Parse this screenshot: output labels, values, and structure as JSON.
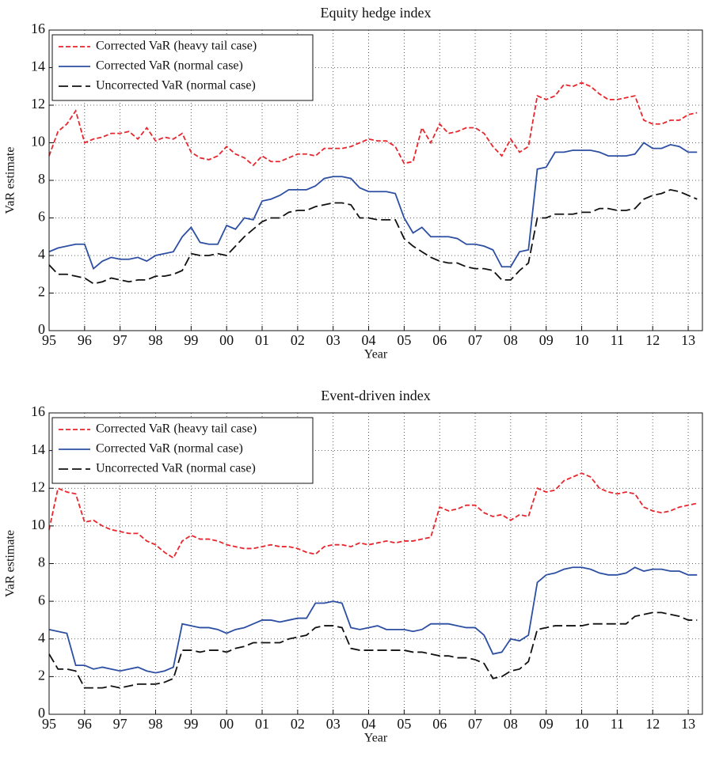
{
  "chart_data": [
    {
      "type": "line",
      "title": "Equity hedge index",
      "x_label": "Year",
      "y_label": "VaR estimate",
      "x": [
        1995,
        1995.25,
        1995.5,
        1995.75,
        1996,
        1996.25,
        1996.5,
        1996.75,
        1997,
        1997.25,
        1997.5,
        1997.75,
        1998,
        1998.25,
        1998.5,
        1998.75,
        1999,
        1999.25,
        1999.5,
        1999.75,
        2000,
        2000.25,
        2000.5,
        2000.75,
        2001,
        2001.25,
        2001.5,
        2001.75,
        2002,
        2002.25,
        2002.5,
        2002.75,
        2003,
        2003.25,
        2003.5,
        2003.75,
        2004,
        2004.25,
        2004.5,
        2004.75,
        2005,
        2005.25,
        2005.5,
        2005.75,
        2006,
        2006.25,
        2006.5,
        2006.75,
        2007,
        2007.25,
        2007.5,
        2007.75,
        2008,
        2008.25,
        2008.5,
        2008.75,
        2009,
        2009.25,
        2009.5,
        2009.75,
        2010,
        2010.25,
        2010.5,
        2010.75,
        2011,
        2011.25,
        2011.5,
        2011.75,
        2012,
        2012.25,
        2012.5,
        2012.75,
        2013,
        2013.25
      ],
      "series": [
        {
          "name": "Corrected VaR (heavy tail case)",
          "color": "#e8262d",
          "style": "dashed",
          "values": [
            9.3,
            10.6,
            11.0,
            11.7,
            10.0,
            10.2,
            10.3,
            10.5,
            10.5,
            10.6,
            10.2,
            10.8,
            10.1,
            10.3,
            10.2,
            10.5,
            9.5,
            9.2,
            9.1,
            9.3,
            9.8,
            9.4,
            9.2,
            8.8,
            9.3,
            9.0,
            9.0,
            9.2,
            9.4,
            9.4,
            9.3,
            9.7,
            9.7,
            9.7,
            9.8,
            10.0,
            10.2,
            10.1,
            10.1,
            9.8,
            8.9,
            9.0,
            10.8,
            10.0,
            11.0,
            10.5,
            10.6,
            10.8,
            10.8,
            10.5,
            9.8,
            9.3,
            10.2,
            9.5,
            9.8,
            12.5,
            12.3,
            12.5,
            13.1,
            13.0,
            13.2,
            13.0,
            12.6,
            12.3,
            12.3,
            12.4,
            12.5,
            11.2,
            11.0,
            11.0,
            11.2,
            11.2,
            11.5,
            11.6
          ]
        },
        {
          "name": "Corrected VaR (normal case)",
          "color": "#2c4fa3",
          "style": "solid",
          "values": [
            4.2,
            4.4,
            4.5,
            4.6,
            4.6,
            3.3,
            3.7,
            3.9,
            3.8,
            3.8,
            3.9,
            3.7,
            4.0,
            4.1,
            4.2,
            5.0,
            5.5,
            4.7,
            4.6,
            4.6,
            5.6,
            5.4,
            6.0,
            5.9,
            6.9,
            7.0,
            7.2,
            7.5,
            7.5,
            7.5,
            7.7,
            8.1,
            8.2,
            8.2,
            8.1,
            7.6,
            7.4,
            7.4,
            7.4,
            7.3,
            6.0,
            5.2,
            5.5,
            5.0,
            5.0,
            5.0,
            4.9,
            4.6,
            4.6,
            4.5,
            4.3,
            3.4,
            3.4,
            4.2,
            4.3,
            8.6,
            8.7,
            9.5,
            9.5,
            9.6,
            9.6,
            9.6,
            9.5,
            9.3,
            9.3,
            9.3,
            9.4,
            10.0,
            9.7,
            9.7,
            9.9,
            9.8,
            9.5,
            9.5
          ]
        },
        {
          "name": "Uncorrected VaR (normal case)",
          "color": "#111111",
          "style": "long-dash",
          "values": [
            3.5,
            3.0,
            3.0,
            2.9,
            2.8,
            2.5,
            2.6,
            2.8,
            2.7,
            2.6,
            2.7,
            2.7,
            2.9,
            2.9,
            3.0,
            3.2,
            4.1,
            4.0,
            4.0,
            4.1,
            4.0,
            4.5,
            5.0,
            5.4,
            5.8,
            6.0,
            6.0,
            6.3,
            6.4,
            6.4,
            6.6,
            6.7,
            6.8,
            6.8,
            6.7,
            6.0,
            6.0,
            5.9,
            5.9,
            5.9,
            4.9,
            4.5,
            4.2,
            3.9,
            3.7,
            3.6,
            3.6,
            3.4,
            3.3,
            3.3,
            3.2,
            2.7,
            2.7,
            3.2,
            3.6,
            6.0,
            6.0,
            6.2,
            6.2,
            6.2,
            6.3,
            6.3,
            6.5,
            6.5,
            6.4,
            6.4,
            6.5,
            7.0,
            7.2,
            7.3,
            7.5,
            7.4,
            7.2,
            7.0
          ]
        }
      ],
      "xlim": [
        1995,
        2013.4
      ],
      "xticks": [
        {
          "value": 1995,
          "label": "95"
        },
        {
          "value": 1996,
          "label": "96"
        },
        {
          "value": 1997,
          "label": "97"
        },
        {
          "value": 1998,
          "label": "98"
        },
        {
          "value": 1999,
          "label": "99"
        },
        {
          "value": 2000,
          "label": "00"
        },
        {
          "value": 2001,
          "label": "01"
        },
        {
          "value": 2002,
          "label": "02"
        },
        {
          "value": 2003,
          "label": "03"
        },
        {
          "value": 2004,
          "label": "04"
        },
        {
          "value": 2005,
          "label": "05"
        },
        {
          "value": 2006,
          "label": "06"
        },
        {
          "value": 2007,
          "label": "07"
        },
        {
          "value": 2008,
          "label": "08"
        },
        {
          "value": 2009,
          "label": "09"
        },
        {
          "value": 2010,
          "label": "10"
        },
        {
          "value": 2011,
          "label": "11"
        },
        {
          "value": 2012,
          "label": "12"
        },
        {
          "value": 2013,
          "label": "13"
        }
      ],
      "ylim": [
        0,
        16
      ],
      "yticks": [
        0,
        2,
        4,
        6,
        8,
        10,
        12,
        14,
        16
      ],
      "grid": true,
      "legend": "upper-left"
    },
    {
      "type": "line",
      "title": "Event-driven index",
      "x_label": "Year",
      "y_label": "VaR estimate",
      "x": [
        1995,
        1995.25,
        1995.5,
        1995.75,
        1996,
        1996.25,
        1996.5,
        1996.75,
        1997,
        1997.25,
        1997.5,
        1997.75,
        1998,
        1998.25,
        1998.5,
        1998.75,
        1999,
        1999.25,
        1999.5,
        1999.75,
        2000,
        2000.25,
        2000.5,
        2000.75,
        2001,
        2001.25,
        2001.5,
        2001.75,
        2002,
        2002.25,
        2002.5,
        2002.75,
        2003,
        2003.25,
        2003.5,
        2003.75,
        2004,
        2004.25,
        2004.5,
        2004.75,
        2005,
        2005.25,
        2005.5,
        2005.75,
        2006,
        2006.25,
        2006.5,
        2006.75,
        2007,
        2007.25,
        2007.5,
        2007.75,
        2008,
        2008.25,
        2008.5,
        2008.75,
        2009,
        2009.25,
        2009.5,
        2009.75,
        2010,
        2010.25,
        2010.5,
        2010.75,
        2011,
        2011.25,
        2011.5,
        2011.75,
        2012,
        2012.25,
        2012.5,
        2012.75,
        2013,
        2013.25
      ],
      "series": [
        {
          "name": "Corrected VaR (heavy tail case)",
          "color": "#e8262d",
          "style": "dashed",
          "values": [
            9.8,
            12.0,
            11.8,
            11.7,
            10.2,
            10.3,
            10.0,
            9.8,
            9.7,
            9.6,
            9.6,
            9.2,
            9.0,
            8.6,
            8.3,
            9.2,
            9.5,
            9.3,
            9.3,
            9.2,
            9.0,
            8.9,
            8.8,
            8.8,
            8.9,
            9.0,
            8.9,
            8.9,
            8.8,
            8.6,
            8.5,
            8.9,
            9.0,
            9.0,
            8.9,
            9.1,
            9.0,
            9.1,
            9.2,
            9.1,
            9.2,
            9.2,
            9.3,
            9.4,
            11.0,
            10.8,
            10.9,
            11.1,
            11.1,
            10.7,
            10.5,
            10.6,
            10.3,
            10.6,
            10.5,
            12.0,
            11.8,
            11.9,
            12.4,
            12.6,
            12.8,
            12.6,
            12.0,
            11.8,
            11.7,
            11.8,
            11.7,
            11.0,
            10.8,
            10.7,
            10.8,
            11.0,
            11.1,
            11.2
          ]
        },
        {
          "name": "Corrected VaR (normal case)",
          "color": "#2c4fa3",
          "style": "solid",
          "values": [
            4.5,
            4.4,
            4.3,
            2.6,
            2.6,
            2.4,
            2.5,
            2.4,
            2.3,
            2.4,
            2.5,
            2.3,
            2.2,
            2.3,
            2.5,
            4.8,
            4.7,
            4.6,
            4.6,
            4.5,
            4.3,
            4.5,
            4.6,
            4.8,
            5.0,
            5.0,
            4.9,
            5.0,
            5.1,
            5.1,
            5.9,
            5.9,
            6.0,
            5.9,
            4.6,
            4.5,
            4.6,
            4.7,
            4.5,
            4.5,
            4.5,
            4.4,
            4.5,
            4.8,
            4.8,
            4.8,
            4.7,
            4.6,
            4.6,
            4.2,
            3.2,
            3.3,
            4.0,
            3.9,
            4.2,
            7.0,
            7.4,
            7.5,
            7.7,
            7.8,
            7.8,
            7.7,
            7.5,
            7.4,
            7.4,
            7.5,
            7.8,
            7.6,
            7.7,
            7.7,
            7.6,
            7.6,
            7.4,
            7.4
          ]
        },
        {
          "name": "Uncorrected VaR (normal case)",
          "color": "#111111",
          "style": "long-dash",
          "values": [
            3.2,
            2.4,
            2.4,
            2.3,
            1.4,
            1.4,
            1.4,
            1.5,
            1.4,
            1.5,
            1.6,
            1.6,
            1.6,
            1.7,
            1.9,
            3.4,
            3.4,
            3.3,
            3.4,
            3.4,
            3.3,
            3.5,
            3.6,
            3.8,
            3.8,
            3.8,
            3.8,
            4.0,
            4.1,
            4.2,
            4.6,
            4.7,
            4.7,
            4.6,
            3.5,
            3.4,
            3.4,
            3.4,
            3.4,
            3.4,
            3.4,
            3.3,
            3.3,
            3.2,
            3.1,
            3.1,
            3.0,
            3.0,
            2.9,
            2.7,
            1.9,
            2.0,
            2.3,
            2.4,
            2.8,
            4.5,
            4.6,
            4.7,
            4.7,
            4.7,
            4.7,
            4.8,
            4.8,
            4.8,
            4.8,
            4.8,
            5.2,
            5.3,
            5.4,
            5.4,
            5.3,
            5.2,
            5.0,
            5.0
          ]
        }
      ],
      "xlim": [
        1995,
        2013.4
      ],
      "xticks": [
        {
          "value": 1995,
          "label": "95"
        },
        {
          "value": 1996,
          "label": "96"
        },
        {
          "value": 1997,
          "label": "97"
        },
        {
          "value": 1998,
          "label": "98"
        },
        {
          "value": 1999,
          "label": "99"
        },
        {
          "value": 2000,
          "label": "00"
        },
        {
          "value": 2001,
          "label": "01"
        },
        {
          "value": 2002,
          "label": "02"
        },
        {
          "value": 2003,
          "label": "03"
        },
        {
          "value": 2004,
          "label": "04"
        },
        {
          "value": 2005,
          "label": "05"
        },
        {
          "value": 2006,
          "label": "06"
        },
        {
          "value": 2007,
          "label": "07"
        },
        {
          "value": 2008,
          "label": "08"
        },
        {
          "value": 2009,
          "label": "09"
        },
        {
          "value": 2010,
          "label": "10"
        },
        {
          "value": 2011,
          "label": "11"
        },
        {
          "value": 2012,
          "label": "12"
        },
        {
          "value": 2013,
          "label": "13"
        }
      ],
      "ylim": [
        0,
        16
      ],
      "yticks": [
        0,
        2,
        4,
        6,
        8,
        10,
        12,
        14,
        16
      ],
      "grid": true,
      "legend": "upper-left"
    }
  ]
}
